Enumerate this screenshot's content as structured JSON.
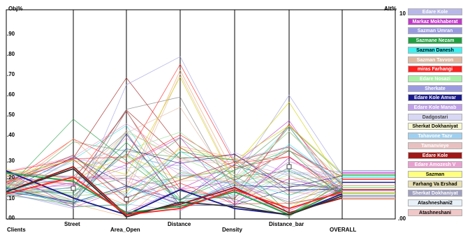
{
  "header": {
    "left": "Obj%",
    "right": "Alt%"
  },
  "y_ticks": [
    ".90",
    ".80",
    ".70",
    ".60",
    ".50",
    ".40",
    ".30",
    ".20",
    ".10",
    ".00"
  ],
  "right_ticks": {
    "top": "10",
    "bottom": ".00"
  },
  "axes": [
    "Clients",
    "Street",
    "Area_Open",
    "Distance",
    "Density",
    "Distance_bar",
    "OVERALL"
  ],
  "legend": [
    {
      "label": "Edare Kole",
      "bg": "#b8b8e8",
      "fg": "#ffffff"
    },
    {
      "label": "Markaz Mokhaberat",
      "bg": "#c03ac8",
      "fg": "#ffffff"
    },
    {
      "label": "Sazman Umran",
      "bg": "#9a9ae0",
      "fg": "#ffffff"
    },
    {
      "label": "Sazmane Nezam",
      "bg": "#20a040",
      "fg": "#ffffff"
    },
    {
      "label": "Sazman Danesh",
      "bg": "#40f0f0",
      "fg": "#000000"
    },
    {
      "label": "Sazman Tavvon",
      "bg": "#e0b8a0",
      "fg": "#ffffff"
    },
    {
      "label": "miras Farhangi",
      "bg": "#ff2020",
      "fg": "#ffffff"
    },
    {
      "label": "Edare Nosazi",
      "bg": "#a8f0a8",
      "fg": "#ffffff"
    },
    {
      "label": "Sherkate",
      "bg": "#9a9ae0",
      "fg": "#ffffff"
    },
    {
      "label": "Edare Kole Amvar",
      "bg": "#1a1a8c",
      "fg": "#ffffff"
    },
    {
      "label": "Edare Kole Manab",
      "bg": "#c0a0e8",
      "fg": "#ffffff"
    },
    {
      "label": "Dadgostari",
      "bg": "#d8d8f4",
      "fg": "#444444"
    },
    {
      "label": "Sherkat Dokhaniyat",
      "bg": "#f8f8d0",
      "fg": "#000000"
    },
    {
      "label": "Tahavone Tazv",
      "bg": "#a0d0f0",
      "fg": "#ffffff"
    },
    {
      "label": "Tamanvieye",
      "bg": "#e8c0c0",
      "fg": "#ffffff"
    },
    {
      "label": "Edare Kole",
      "bg": "#a01818",
      "fg": "#ffffff"
    },
    {
      "label": "Edare Amozesh V",
      "bg": "#e8a0d0",
      "fg": "#ffffff"
    },
    {
      "label": "Sazman",
      "bg": "#ffff80",
      "fg": "#000000"
    },
    {
      "label": "Farhang Va Ershad",
      "bg": "#e8e0b0",
      "fg": "#000000"
    },
    {
      "label": "Sherkat Dokhaniyat",
      "bg": "#a0a0c0",
      "fg": "#ffffff"
    },
    {
      "label": "Atashneshani2",
      "bg": "#e8f0f8",
      "fg": "#000000"
    },
    {
      "label": "Atashneshani",
      "bg": "#f0c8c8",
      "fg": "#000000"
    }
  ],
  "colors": {
    "frame": "#000000",
    "bg": "#ffffff"
  }
}
